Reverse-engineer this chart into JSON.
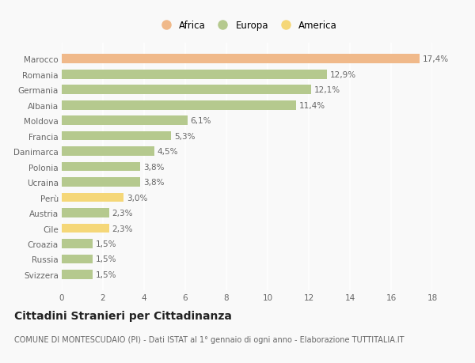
{
  "categories": [
    "Svizzera",
    "Russia",
    "Croazia",
    "Cile",
    "Austria",
    "Perù",
    "Ucraina",
    "Polonia",
    "Danimarca",
    "Francia",
    "Moldova",
    "Albania",
    "Germania",
    "Romania",
    "Marocco"
  ],
  "values": [
    1.5,
    1.5,
    1.5,
    2.3,
    2.3,
    3.0,
    3.8,
    3.8,
    4.5,
    5.3,
    6.1,
    11.4,
    12.1,
    12.9,
    17.4
  ],
  "labels": [
    "1,5%",
    "1,5%",
    "1,5%",
    "2,3%",
    "2,3%",
    "3,0%",
    "3,8%",
    "3,8%",
    "4,5%",
    "5,3%",
    "6,1%",
    "11,4%",
    "12,1%",
    "12,9%",
    "17,4%"
  ],
  "colors": [
    "#b5c98e",
    "#b5c98e",
    "#b5c98e",
    "#f5d778",
    "#b5c98e",
    "#f5d778",
    "#b5c98e",
    "#b5c98e",
    "#b5c98e",
    "#b5c98e",
    "#b5c98e",
    "#b5c98e",
    "#b5c98e",
    "#b5c98e",
    "#f0b98a"
  ],
  "legend": [
    {
      "label": "Africa",
      "color": "#f0b98a"
    },
    {
      "label": "Europa",
      "color": "#b5c98e"
    },
    {
      "label": "America",
      "color": "#f5d778"
    }
  ],
  "title": "Cittadini Stranieri per Cittadinanza",
  "subtitle": "COMUNE DI MONTESCUDAIO (PI) - Dati ISTAT al 1° gennaio di ogni anno - Elaborazione TUTTITALIA.IT",
  "xlim": [
    0,
    18
  ],
  "xticks": [
    0,
    2,
    4,
    6,
    8,
    10,
    12,
    14,
    16,
    18
  ],
  "background_color": "#f9f9f9",
  "grid_color": "#ffffff",
  "bar_height": 0.6,
  "label_fontsize": 7.5,
  "title_fontsize": 10,
  "subtitle_fontsize": 7,
  "ytick_fontsize": 7.5,
  "xtick_fontsize": 7.5,
  "legend_fontsize": 8.5,
  "text_color": "#666666"
}
